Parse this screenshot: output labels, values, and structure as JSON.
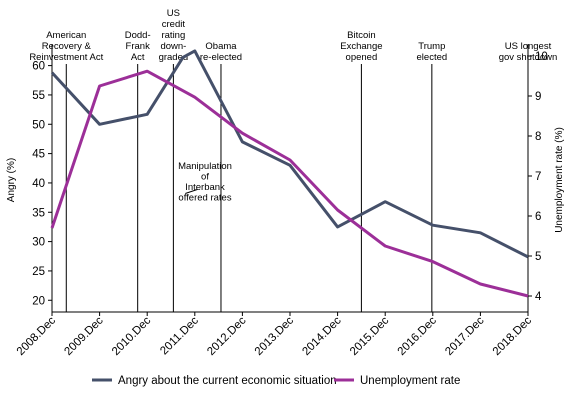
{
  "chart_data": {
    "type": "line",
    "categories": [
      "2008.Dec",
      "2009.Dec",
      "2010.Dec",
      "2011.Dec",
      "2012.Dec",
      "2013.Dec",
      "2014.Dec",
      "2015.Dec",
      "2016.Dec",
      "2017.Dec",
      "2018.Dec"
    ],
    "ylabel_left": "Angry (%)",
    "ylabel_right": "Unemployment rate (%)",
    "ylim_left": [
      18,
      63
    ],
    "ylim_right": [
      3.6,
      10.2
    ],
    "yticks_left": [
      20,
      25,
      30,
      35,
      40,
      45,
      50,
      55,
      60
    ],
    "yticks_right": [
      4,
      5,
      6,
      7,
      8,
      9,
      10
    ],
    "grid": false,
    "legend_position": "bottom",
    "series": [
      {
        "name": "Angry about the current economic situation",
        "axis": "left",
        "color": "#45506a",
        "x": [
          0,
          1,
          2,
          2.75,
          3.0,
          4,
          5,
          6,
          7,
          8,
          9,
          10
        ],
        "values": [
          58.8,
          50.0,
          51.7,
          61.4,
          62.5,
          47.0,
          43.0,
          32.5,
          36.8,
          32.8,
          31.5,
          27.4
        ]
      },
      {
        "name": "Unemployment rate",
        "axis": "right",
        "color": "#9c2f98",
        "x": [
          0,
          1,
          2,
          3,
          4,
          5,
          6,
          7,
          8,
          9,
          10
        ],
        "values": [
          5.7,
          9.25,
          9.62,
          8.97,
          8.07,
          7.4,
          6.15,
          5.25,
          4.86,
          4.3,
          4.0
        ]
      }
    ],
    "events": [
      {
        "x": 0.3,
        "label": [
          "American",
          "Recovery &",
          "Reinvestment Act"
        ]
      },
      {
        "x": 1.8,
        "label": [
          "Dodd-",
          "Frank",
          "Act"
        ]
      },
      {
        "x": 2.55,
        "label": [
          "US",
          "credit",
          "rating",
          "down-",
          "graded"
        ]
      },
      {
        "x": 3.55,
        "label": [
          "Obama",
          "re-elected"
        ]
      },
      {
        "x": 6.5,
        "label": [
          "Bitcoin",
          "Exchange",
          "opened"
        ]
      },
      {
        "x": 7.98,
        "label": [
          "Trump",
          "elected"
        ]
      },
      {
        "x": 10.0,
        "label": [
          "US longest",
          "gov shutdown"
        ]
      }
    ],
    "annotation": {
      "x": 2.8,
      "y": 38.2,
      "label": [
        "Manipulation",
        "of",
        "Interbank",
        "offered rates"
      ]
    }
  }
}
